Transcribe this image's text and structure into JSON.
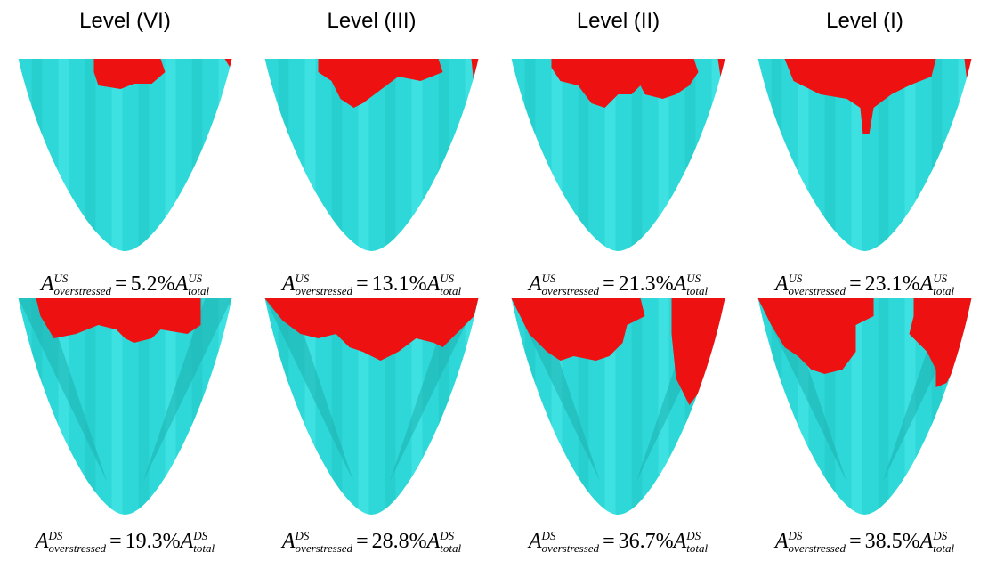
{
  "columns": [
    {
      "title": "Level (VI)",
      "upstream": {
        "symbol": "A",
        "superscript": "US",
        "subscript": "overstressed",
        "relation": "=",
        "percent": "5.2%",
        "total_symbol": "A",
        "total_superscript": "US",
        "total_subscript": "total"
      },
      "downstream": {
        "symbol": "A",
        "superscript": "DS",
        "subscript": "overstressed",
        "relation": "=",
        "percent": "19.3%",
        "total_symbol": "A",
        "total_superscript": "DS",
        "total_subscript": "total"
      }
    },
    {
      "title": "Level (III)",
      "upstream": {
        "symbol": "A",
        "superscript": "US",
        "subscript": "overstressed",
        "relation": "=",
        "percent": "13.1%",
        "total_symbol": "A",
        "total_superscript": "US",
        "total_subscript": "total"
      },
      "downstream": {
        "symbol": "A",
        "superscript": "DS",
        "subscript": "overstressed",
        "relation": "=",
        "percent": "28.8%",
        "total_symbol": "A",
        "total_superscript": "DS",
        "total_subscript": "total"
      }
    },
    {
      "title": "Level (II)",
      "upstream": {
        "symbol": "A",
        "superscript": "US",
        "subscript": "overstressed",
        "relation": "=",
        "percent": "21.3%",
        "total_symbol": "A",
        "total_superscript": "US",
        "total_subscript": "total"
      },
      "downstream": {
        "symbol": "A",
        "superscript": "DS",
        "subscript": "overstressed",
        "relation": "=",
        "percent": "36.7%",
        "total_symbol": "A",
        "total_superscript": "DS",
        "total_subscript": "total"
      }
    },
    {
      "title": "Level (I)",
      "upstream": {
        "symbol": "A",
        "superscript": "US",
        "subscript": "overstressed",
        "relation": "=",
        "percent": "23.1%",
        "total_symbol": "A",
        "total_superscript": "US",
        "total_subscript": "total"
      },
      "downstream": {
        "symbol": "A",
        "superscript": "DS",
        "subscript": "overstressed",
        "relation": "=",
        "percent": "38.5%",
        "total_symbol": "A",
        "total_superscript": "DS",
        "total_subscript": "total"
      }
    }
  ]
}
